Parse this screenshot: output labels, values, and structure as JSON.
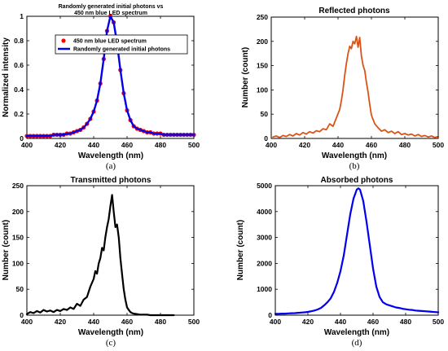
{
  "chart_data": [
    {
      "panel": "(a)",
      "type": "line",
      "title": [
        "Randomly generated initial photons vs",
        "450 nm blue LED spectrum"
      ],
      "xlabel": "Wavelength (nm)",
      "ylabel": "Normalized intensity",
      "xlim": [
        400,
        500
      ],
      "ylim": [
        0,
        1
      ],
      "xticks": [
        400,
        420,
        440,
        460,
        480,
        500
      ],
      "yticks": [
        0,
        0.2,
        0.4,
        0.6,
        0.8,
        1
      ],
      "ytick_labels": [
        "0",
        "0.2",
        "0.4",
        "0.6",
        "0.8",
        "1"
      ],
      "legend": "top",
      "series": [
        {
          "name": "450 nm blue LED spectrum",
          "style": "markers",
          "color": "#ff0000",
          "x": [
            400,
            402,
            404,
            406,
            408,
            410,
            412,
            414,
            416,
            418,
            420,
            422,
            424,
            426,
            428,
            430,
            432,
            434,
            436,
            438,
            440,
            442,
            444,
            446,
            448,
            450,
            452,
            454,
            456,
            458,
            460,
            462,
            464,
            466,
            468,
            470,
            472,
            474,
            476,
            478,
            480,
            482,
            484,
            486,
            488,
            490,
            492,
            494,
            496,
            498,
            500
          ],
          "y": [
            0.02,
            0.02,
            0.02,
            0.02,
            0.02,
            0.02,
            0.02,
            0.02,
            0.03,
            0.03,
            0.03,
            0.03,
            0.04,
            0.04,
            0.05,
            0.06,
            0.07,
            0.09,
            0.12,
            0.16,
            0.22,
            0.31,
            0.45,
            0.65,
            0.88,
            1.0,
            0.95,
            0.78,
            0.56,
            0.37,
            0.23,
            0.15,
            0.1,
            0.08,
            0.07,
            0.06,
            0.05,
            0.05,
            0.04,
            0.04,
            0.04,
            0.03,
            0.03,
            0.03,
            0.03,
            0.03,
            0.03,
            0.03,
            0.03,
            0.03,
            0.03
          ]
        },
        {
          "name": "Randomly generated initial photons",
          "style": "line",
          "color": "#0000ee",
          "x": [
            400,
            402,
            404,
            406,
            408,
            410,
            412,
            414,
            416,
            418,
            420,
            422,
            424,
            426,
            428,
            430,
            432,
            434,
            436,
            438,
            440,
            442,
            444,
            446,
            448,
            450,
            452,
            454,
            456,
            458,
            460,
            462,
            464,
            466,
            468,
            470,
            472,
            474,
            476,
            478,
            480,
            482,
            484,
            486,
            488,
            490,
            492,
            494,
            496,
            498,
            500
          ],
          "y": [
            0.02,
            0.02,
            0.02,
            0.02,
            0.02,
            0.02,
            0.02,
            0.02,
            0.03,
            0.03,
            0.03,
            0.03,
            0.04,
            0.04,
            0.05,
            0.06,
            0.07,
            0.09,
            0.12,
            0.16,
            0.22,
            0.31,
            0.45,
            0.65,
            0.88,
            1.0,
            0.95,
            0.78,
            0.56,
            0.37,
            0.23,
            0.15,
            0.1,
            0.08,
            0.07,
            0.06,
            0.05,
            0.05,
            0.04,
            0.04,
            0.04,
            0.03,
            0.03,
            0.03,
            0.03,
            0.03,
            0.03,
            0.03,
            0.03,
            0.03,
            0.03
          ]
        }
      ]
    },
    {
      "panel": "(b)",
      "type": "line",
      "title": [
        "Reflected photons"
      ],
      "xlabel": "Wavelength (nm)",
      "ylabel": "Number (count)",
      "xlim": [
        400,
        500
      ],
      "ylim": [
        0,
        250
      ],
      "xticks": [
        400,
        420,
        440,
        460,
        480,
        500
      ],
      "yticks": [
        0,
        50,
        100,
        150,
        200,
        250
      ],
      "ytick_labels": [
        "0",
        "50",
        "100",
        "150",
        "200",
        "250"
      ],
      "series": [
        {
          "color": "#d95319",
          "x": [
            401,
            403,
            405,
            407,
            409,
            411,
            413,
            415,
            417,
            419,
            421,
            423,
            425,
            427,
            429,
            431,
            433,
            435,
            437,
            439,
            441,
            442,
            443,
            444,
            445,
            446,
            447,
            448,
            449,
            450,
            451,
            452,
            453,
            454,
            455,
            456,
            457,
            458,
            459,
            460,
            462,
            464,
            466,
            468,
            470,
            472,
            474,
            476,
            478,
            480,
            482,
            484,
            486,
            488,
            490,
            492,
            494,
            496,
            498,
            500
          ],
          "y": [
            3,
            5,
            2,
            6,
            4,
            8,
            5,
            10,
            7,
            12,
            9,
            14,
            11,
            16,
            14,
            20,
            18,
            30,
            25,
            42,
            60,
            78,
            100,
            130,
            155,
            175,
            190,
            185,
            200,
            195,
            210,
            188,
            208,
            170,
            150,
            140,
            115,
            95,
            70,
            48,
            30,
            22,
            15,
            18,
            12,
            15,
            10,
            14,
            8,
            10,
            7,
            9,
            5,
            8,
            4,
            6,
            3,
            5,
            2,
            4
          ]
        }
      ]
    },
    {
      "panel": "(c)",
      "type": "line",
      "title": [
        "Transmitted photons"
      ],
      "xlabel": "Wavelength (nm)",
      "ylabel": "Number (count)",
      "xlim": [
        400,
        500
      ],
      "ylim": [
        0,
        250
      ],
      "xticks": [
        400,
        420,
        440,
        460,
        480,
        500
      ],
      "yticks": [
        0,
        50,
        100,
        150,
        200,
        250
      ],
      "ytick_labels": [
        "0",
        "50",
        "100",
        "150",
        "200",
        "250"
      ],
      "series": [
        {
          "color": "#000000",
          "x": [
            400,
            402,
            404,
            406,
            408,
            410,
            412,
            414,
            416,
            418,
            420,
            422,
            424,
            426,
            428,
            430,
            432,
            434,
            436,
            438,
            440,
            441,
            442,
            443,
            444,
            445,
            446,
            447,
            448,
            449,
            450,
            451,
            452,
            453,
            454,
            455,
            456,
            457,
            458,
            459,
            460,
            461,
            462,
            463,
            464,
            466,
            468,
            470,
            472,
            474,
            476,
            478,
            480,
            482,
            484,
            486,
            488
          ],
          "y": [
            2,
            6,
            4,
            8,
            5,
            10,
            7,
            9,
            6,
            10,
            8,
            12,
            10,
            15,
            12,
            22,
            18,
            30,
            35,
            55,
            70,
            85,
            80,
            100,
            110,
            130,
            125,
            150,
            170,
            185,
            210,
            232,
            200,
            170,
            175,
            150,
            110,
            80,
            50,
            30,
            15,
            10,
            6,
            4,
            3,
            2,
            1,
            1,
            1,
            0,
            0,
            0,
            0,
            0,
            0,
            0,
            0
          ]
        }
      ]
    },
    {
      "panel": "(d)",
      "type": "line",
      "title": [
        "Absorbed photons"
      ],
      "xlabel": "Wavelength (nm)",
      "ylabel": "Number (count)",
      "xlim": [
        400,
        500
      ],
      "ylim": [
        0,
        5000
      ],
      "xticks": [
        400,
        420,
        440,
        460,
        480,
        500
      ],
      "yticks": [
        0,
        1000,
        2000,
        3000,
        4000,
        5000
      ],
      "ytick_labels": [
        "0",
        "1000",
        "2000",
        "3000",
        "4000",
        "5000"
      ],
      "series": [
        {
          "color": "#0000ee",
          "x": [
            400,
            402,
            404,
            406,
            408,
            410,
            412,
            414,
            416,
            418,
            420,
            422,
            424,
            426,
            428,
            430,
            432,
            434,
            436,
            438,
            440,
            442,
            444,
            446,
            448,
            450,
            451,
            452,
            454,
            456,
            458,
            460,
            462,
            464,
            466,
            468,
            470,
            472,
            474,
            476,
            478,
            480,
            482,
            484,
            486,
            488,
            490,
            492,
            494,
            496,
            498,
            500
          ],
          "y": [
            50,
            55,
            60,
            60,
            70,
            75,
            80,
            90,
            100,
            110,
            125,
            150,
            180,
            220,
            280,
            380,
            500,
            650,
            900,
            1250,
            1700,
            2300,
            3100,
            3900,
            4500,
            4850,
            4900,
            4850,
            4400,
            3600,
            2700,
            1800,
            1100,
            700,
            500,
            420,
            380,
            340,
            300,
            280,
            250,
            230,
            210,
            200,
            180,
            170,
            160,
            150,
            140,
            130,
            120,
            110
          ]
        }
      ]
    }
  ]
}
